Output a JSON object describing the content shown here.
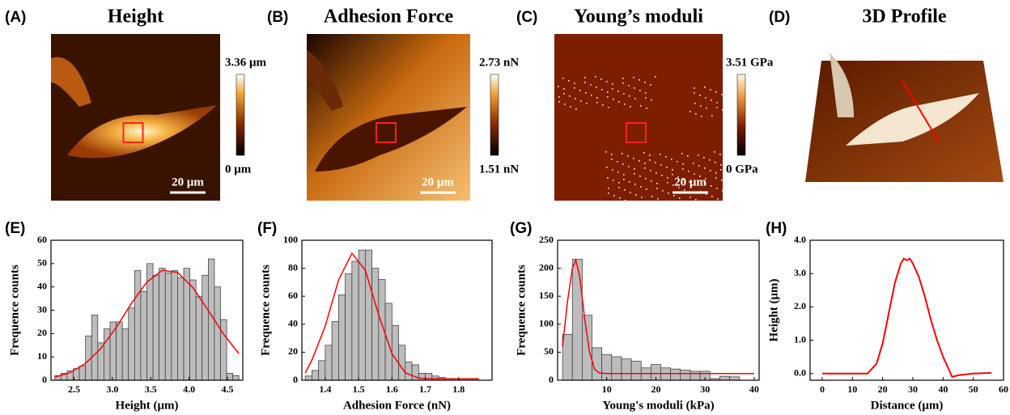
{
  "images": [
    {
      "label": "(A)",
      "title": "Height",
      "colorbar_max": "3.36 μm",
      "colorbar_min": "0 μm",
      "scale_bar": "20 μm"
    },
    {
      "label": "(B)",
      "title": "Adhesion Force",
      "colorbar_max": "2.73 nN",
      "colorbar_min": "1.51 nN",
      "scale_bar": "20 μm"
    },
    {
      "label": "(C)",
      "title": "Young’s moduli",
      "colorbar_max": "3.51 GPa",
      "colorbar_min": "0 GPa",
      "scale_bar": "20 μm"
    },
    {
      "label": "(D)",
      "title": "3D Profile"
    }
  ],
  "chart_data": [
    {
      "type": "histogram",
      "label": "(E)",
      "x_label": "Height (μm)",
      "y_label": "Frequence counts",
      "color": "#bdbdbd",
      "bins": [
        2.25,
        2.33,
        2.41,
        2.49,
        2.57,
        2.65,
        2.73,
        2.81,
        2.89,
        2.97,
        3.05,
        3.13,
        3.21,
        3.29,
        3.37,
        3.45,
        3.53,
        3.61,
        3.69,
        3.77,
        3.85,
        3.93,
        4.01,
        4.09,
        4.17,
        4.25,
        4.33,
        4.41,
        4.49,
        4.57,
        4.65
      ],
      "values": [
        2,
        3,
        4,
        5,
        6,
        19,
        28,
        16,
        22,
        25,
        25,
        22,
        31,
        47,
        38,
        50,
        45,
        48,
        46,
        47,
        44,
        48,
        43,
        36,
        45,
        52,
        40,
        26,
        3,
        2
      ],
      "fit": {
        "color": "#ff0000",
        "x": [
          2.25,
          2.45,
          2.65,
          2.85,
          3.05,
          3.25,
          3.45,
          3.65,
          3.85,
          4.05,
          4.25,
          4.45,
          4.65
        ],
        "values": [
          1.3,
          3.3,
          7.2,
          13.6,
          22.6,
          33,
          42.1,
          47.1,
          46.2,
          39.7,
          29.9,
          19.7,
          11.4
        ]
      },
      "xlim": [
        2.2,
        4.7
      ],
      "xticks": [
        2.5,
        {
          "value": 3,
          "label": "3.0"
        },
        3.5,
        {
          "value": 4,
          "label": "4.0"
        },
        4.5
      ],
      "ylim": [
        0,
        60
      ],
      "yticks": [
        0,
        10,
        20,
        30,
        40,
        50,
        60
      ]
    },
    {
      "type": "histogram",
      "label": "(F)",
      "x_label": "Adhesion Force (nN)",
      "y_label": "Frequence counts",
      "color": "#bdbdbd",
      "bins": [
        1.34,
        1.36,
        1.38,
        1.4,
        1.42,
        1.44,
        1.46,
        1.48,
        1.5,
        1.52,
        1.54,
        1.56,
        1.58,
        1.6,
        1.62,
        1.64,
        1.66,
        1.68,
        1.7,
        1.72,
        1.74,
        1.76,
        1.78,
        1.8,
        1.82,
        1.84,
        1.86
      ],
      "values": [
        3,
        7,
        14,
        25,
        42,
        61,
        76,
        85,
        93,
        93,
        80,
        72,
        55,
        39,
        25,
        13,
        11,
        5,
        5,
        3,
        2,
        1,
        1,
        1,
        1,
        1
      ],
      "fit": {
        "color": "#ff0000",
        "x": [
          1.34,
          1.36,
          1.4,
          1.44,
          1.48,
          1.52,
          1.56,
          1.6,
          1.64,
          1.68,
          1.72,
          1.78,
          1.86
        ],
        "values": [
          5,
          14.3,
          38.7,
          71.6,
          90.7,
          78.7,
          46.8,
          19,
          5.3,
          1.5,
          1,
          1,
          1
        ]
      },
      "xlim": [
        1.33,
        1.9
      ],
      "xticks": [
        1.4,
        1.5,
        1.6,
        1.7,
        1.8
      ],
      "ylim": [
        0,
        100
      ],
      "yticks": [
        0,
        20,
        40,
        60,
        80,
        100
      ]
    },
    {
      "type": "histogram",
      "label": "(G)",
      "x_label": "Young's moduli (kPa)",
      "y_label": "Frequence counts",
      "color": "#bdbdbd",
      "bins": [
        1,
        3,
        5,
        7,
        9,
        11,
        13,
        15,
        17,
        19,
        21,
        23,
        25,
        27,
        29,
        31,
        33,
        35,
        37
      ],
      "values": [
        82,
        216,
        116,
        58,
        46,
        42,
        38,
        34,
        22,
        28,
        22,
        20,
        18,
        16,
        16,
        3,
        7,
        6
      ],
      "fit": {
        "color": "#ff0000",
        "x": [
          1,
          2,
          3,
          3.7,
          4.5,
          5.5,
          6.5,
          7.5,
          8.5,
          10,
          40
        ],
        "values": [
          60,
          140,
          200,
          215,
          185,
          110,
          50,
          20,
          13,
          12,
          12
        ]
      },
      "xlim": [
        0,
        41
      ],
      "xticks": [
        10,
        20,
        30,
        40
      ],
      "ylim": [
        0,
        250
      ],
      "yticks": [
        0,
        50,
        100,
        150,
        200,
        250
      ]
    },
    {
      "type": "line",
      "label": "(H)",
      "x_label": "Distance (μm)",
      "y_label": "Height (μm)",
      "color": "#ff0000",
      "x": [
        0,
        15,
        16,
        18,
        20,
        22,
        24,
        26,
        27,
        28,
        29,
        30,
        32,
        34,
        36,
        38,
        40,
        42,
        43,
        45,
        50,
        56
      ],
      "values": [
        0,
        0,
        0.1,
        0.3,
        0.9,
        1.8,
        2.7,
        3.3,
        3.45,
        3.4,
        3.45,
        3.3,
        2.9,
        2.3,
        1.6,
        1,
        0.5,
        0.1,
        -0.1,
        -0.05,
        0,
        0.02
      ],
      "xlim": [
        -4,
        60
      ],
      "xticks": [
        0,
        10,
        20,
        30,
        40,
        50,
        60
      ],
      "ylim": [
        -0.2,
        4
      ],
      "yticks": [
        {
          "value": 0,
          "label": "0.0"
        },
        {
          "value": 1,
          "label": "1.0"
        },
        {
          "value": 2,
          "label": "2.0"
        },
        {
          "value": 3,
          "label": "3.0"
        },
        {
          "value": 4,
          "label": "4.0"
        }
      ]
    }
  ]
}
